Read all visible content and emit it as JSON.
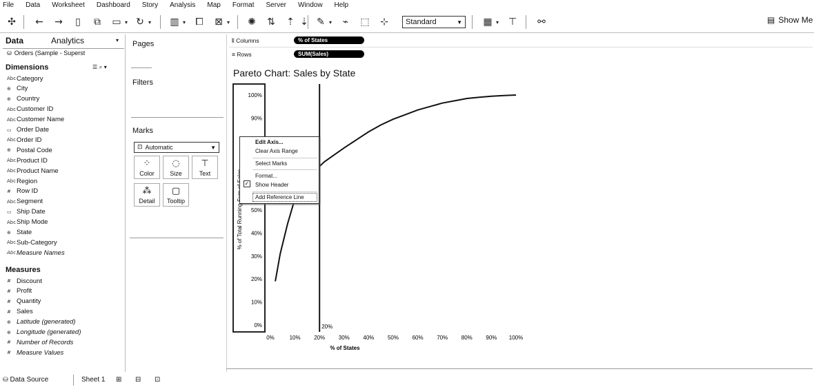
{
  "menu": [
    "File",
    "Data",
    "Worksheet",
    "Dashboard",
    "Story",
    "Analysis",
    "Map",
    "Format",
    "Server",
    "Window",
    "Help"
  ],
  "toolbar": {
    "fit_select": "Standard",
    "show_me": "Show Me",
    "icons": [
      "tableau-logo-icon",
      "undo-icon",
      "redo-icon",
      "save-icon",
      "add-datasource-icon",
      "new-worksheet-icon",
      "refresh-icon",
      "run-update-icon",
      "duplicate-icon",
      "clear-sheet-icon",
      "highlight-icon",
      "swap-icon",
      "sort-ascending-icon",
      "sort-descending-icon",
      "group-icon",
      "label-icon",
      "fix-axes-icon",
      "fit-icon",
      "show-cards-icon",
      "presentation-icon",
      "share-icon"
    ]
  },
  "datapane": {
    "tab_data": "Data",
    "tab_analytics": "Analytics",
    "datasource": "Orders (Sample - Superst",
    "dimensions_header": "Dimensions",
    "dimensions": [
      {
        "label": "Category",
        "icon": "Abc"
      },
      {
        "label": "City",
        "icon": "globe"
      },
      {
        "label": "Country",
        "icon": "globe"
      },
      {
        "label": "Customer ID",
        "icon": "Abc"
      },
      {
        "label": "Customer Name",
        "icon": "Abc"
      },
      {
        "label": "Order Date",
        "icon": "date"
      },
      {
        "label": "Order ID",
        "icon": "Abc"
      },
      {
        "label": "Postal Code",
        "icon": "globe"
      },
      {
        "label": "Product ID",
        "icon": "Abc"
      },
      {
        "label": "Product Name",
        "icon": "Abc"
      },
      {
        "label": "Region",
        "icon": "Abc"
      },
      {
        "label": "Row ID",
        "icon": "#"
      },
      {
        "label": "Segment",
        "icon": "Abc"
      },
      {
        "label": "Ship Date",
        "icon": "date"
      },
      {
        "label": "Ship Mode",
        "icon": "Abc"
      },
      {
        "label": "State",
        "icon": "globe"
      },
      {
        "label": "Sub-Category",
        "icon": "Abc"
      },
      {
        "label": "Measure Names",
        "icon": "Abc",
        "italic": true
      }
    ],
    "measures_header": "Measures",
    "measures": [
      {
        "label": "Discount",
        "icon": "#"
      },
      {
        "label": "Profit",
        "icon": "#"
      },
      {
        "label": "Quantity",
        "icon": "#"
      },
      {
        "label": "Sales",
        "icon": "#"
      },
      {
        "label": "Latitude (generated)",
        "icon": "globe",
        "italic": true
      },
      {
        "label": "Longitude (generated)",
        "icon": "globe",
        "italic": true
      },
      {
        "label": "Number of Records",
        "icon": "#",
        "italic": true
      },
      {
        "label": "Measure Values",
        "icon": "#",
        "italic": true
      }
    ]
  },
  "cards": {
    "pages": "Pages",
    "filters": "Filters",
    "marks": "Marks",
    "marks_type": "Automatic",
    "mark_buttons": [
      {
        "label": "Color",
        "icon": "color-icon"
      },
      {
        "label": "Size",
        "icon": "size-icon"
      },
      {
        "label": "Text",
        "icon": "text-icon"
      },
      {
        "label": "Detail",
        "icon": "detail-icon"
      },
      {
        "label": "Tooltip",
        "icon": "tooltip-icon"
      }
    ]
  },
  "shelves": {
    "columns_label": "Columns",
    "rows_label": "Rows",
    "columns_pill": "% of States",
    "rows_pill": "SUM(Sales)"
  },
  "chart": {
    "title": "Pareto Chart: Sales by State",
    "y_axis_label": "% of Total Running Sum of Sales",
    "x_axis_label": "% of States",
    "ref_line_label": "20%",
    "y_ticks": [
      "100%",
      "90%",
      "50%",
      "40%",
      "30%",
      "20%",
      "10%",
      "0%"
    ],
    "x_ticks": [
      "0%",
      "10%",
      "20%",
      "30%",
      "40%",
      "50%",
      "60%",
      "70%",
      "80%",
      "90%",
      "100%"
    ]
  },
  "chart_data": {
    "type": "line",
    "title": "Pareto Chart: Sales by State",
    "xlabel": "% of States",
    "ylabel": "% of Total Running Sum of Sales",
    "xlim": [
      0,
      100
    ],
    "ylim": [
      0,
      100
    ],
    "x": [
      2,
      4,
      7,
      10,
      14,
      18,
      22,
      26,
      30,
      35,
      40,
      45,
      50,
      55,
      60,
      65,
      70,
      75,
      80,
      85,
      90,
      95,
      100
    ],
    "series": [
      {
        "values": [
          19,
          31,
          44,
          55,
          62,
          67,
          71,
          74,
          77,
          80.5,
          84,
          87,
          89.5,
          91.5,
          93.5,
          95,
          96.5,
          97.5,
          98.5,
          99,
          99.5,
          99.8,
          100
        ]
      }
    ],
    "reference_lines": [
      {
        "axis": "x",
        "value": 20,
        "label": "20%"
      }
    ],
    "grid": false
  },
  "context_menu": {
    "items": [
      "Edit Axis...",
      "Clear Axis Range",
      "Select Marks",
      "Format...",
      "Show Header",
      "Add Reference Line"
    ]
  },
  "bottombar": {
    "datasource_tab": "Data Source",
    "sheet_tab": "Sheet 1"
  }
}
